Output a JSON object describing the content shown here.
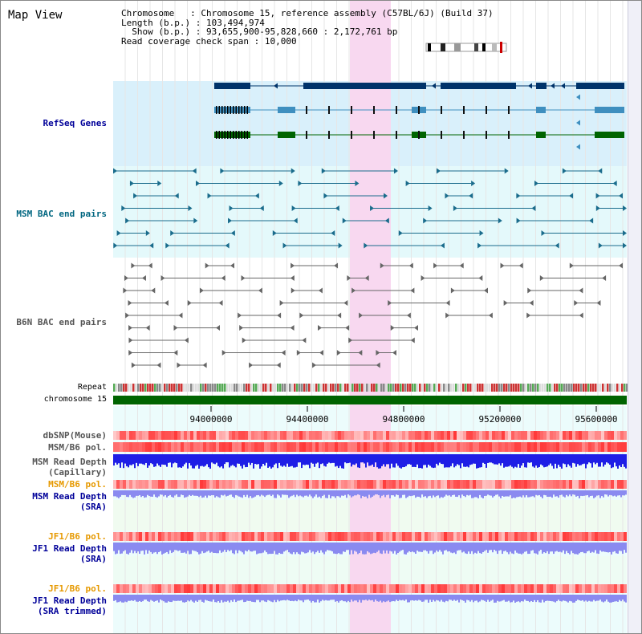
{
  "header": {
    "title": "Map View"
  },
  "info": {
    "chromosome_label": "Chromosome",
    "chromosome_value": "Chromosome 15, reference assembly (C57BL/6J) (Build 37)",
    "length_label": "Length (b.p.)",
    "length_value": "103,494,974",
    "show_label": "Show (b.p.)",
    "show_value": "93,655,900-95,828,660 : 2,172,761 bp",
    "coverage_label": "Read coverage check span",
    "coverage_value": "10,000"
  },
  "tracks": {
    "refseq": "RefSeq Genes",
    "msm_bac": "MSM BAC end pairs",
    "b6n_bac": "B6N BAC end pairs",
    "repeat": "Repeat",
    "chromosome": "chromosome 15",
    "dbsnp": "dbSNP(Mouse)",
    "msm_b6_pol_1": "MSM/B6 pol.",
    "msm_read_depth_cap_1": "MSM Read Depth",
    "msm_read_depth_cap_2": "(Capillary)",
    "msm_b6_pol_2": "MSM/B6 pol.",
    "msm_read_depth_sra_1": "MSM Read Depth",
    "msm_read_depth_sra_2": "(SRA)",
    "jf1_b6_pol_1": "JF1/B6 pol.",
    "jf1_read_depth_sra_1": "JF1 Read Depth",
    "jf1_read_depth_sra_2": "(SRA)",
    "jf1_b6_pol_2": "JF1/B6 pol.",
    "jf1_read_depth_trim_1": "JF1 Read Depth",
    "jf1_read_depth_trim_2": "(SRA trimmed)"
  },
  "axis": {
    "ticks": [
      "94000000",
      "94400000",
      "94800000",
      "95200000",
      "95600000"
    ]
  },
  "colors": {
    "refseq_bg": "#d9f0fb",
    "msm_bg": "#e4f9fb",
    "light_bg": "#ecfcfc",
    "highlight": "#f8d8f0",
    "refseq_dark": "#00336a",
    "refseq_mid": "#3f8fbf",
    "refseq_green": "#006400",
    "msm_line": "#1a6c8c",
    "b6n_line": "#666666",
    "chr_bar": "#006400",
    "pol_red": "#ff3b3b",
    "depth_blue": "#1e1ee6",
    "depth_light": "#8a8af0",
    "label_blue": "#000099",
    "label_teal": "#006680",
    "label_orange": "#e69900",
    "label_gray": "#555555"
  }
}
